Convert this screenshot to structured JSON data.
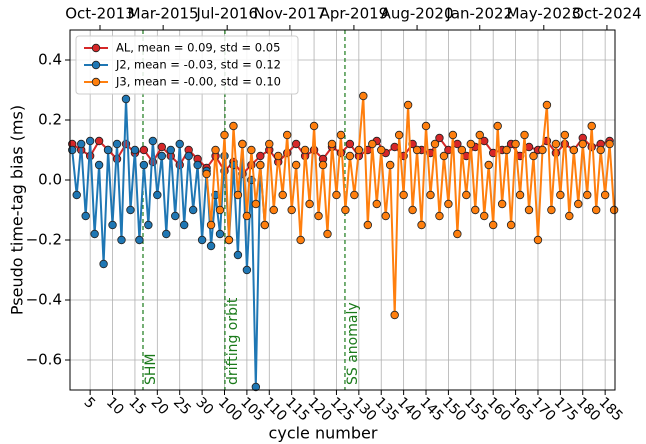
{
  "chart_data": {
    "type": "line",
    "xlabel": "cycle number",
    "ylabel": "Pseudo time-tag bias (ms)",
    "xlim": [
      0.5,
      122.2
    ],
    "ylim": [
      -0.7,
      0.5
    ],
    "xticks": [
      5,
      10,
      15,
      20,
      25,
      30,
      {
        "value": 35,
        "label": "100"
      },
      {
        "value": 40,
        "label": "105"
      },
      {
        "value": 45,
        "label": "110"
      },
      {
        "value": 50,
        "label": "115"
      },
      {
        "value": 55,
        "label": "120"
      },
      {
        "value": 60,
        "label": "125"
      },
      {
        "value": 65,
        "label": "130"
      },
      {
        "value": 70,
        "label": "135"
      },
      {
        "value": 75,
        "label": "140"
      },
      {
        "value": 80,
        "label": "145"
      },
      {
        "value": 85,
        "label": "150"
      },
      {
        "value": 90,
        "label": "155"
      },
      {
        "value": 95,
        "label": "160"
      },
      {
        "value": 100,
        "label": "165"
      },
      {
        "value": 105,
        "label": "170"
      },
      {
        "value": 110,
        "label": "175"
      },
      {
        "value": 115,
        "label": "180"
      },
      {
        "value": 120,
        "label": "185"
      }
    ],
    "x2ticks": [
      {
        "value": 7.2,
        "label": "Oct-2013"
      },
      {
        "value": 21.3,
        "label": "Mar-2015"
      },
      {
        "value": 35.6,
        "label": "Jul-2016"
      },
      {
        "value": 49.6,
        "label": "Nov-2017"
      },
      {
        "value": 63.9,
        "label": "Apr-2019"
      },
      {
        "value": 78,
        "label": "Aug-2020"
      },
      {
        "value": 92,
        "label": "Jan-2022"
      },
      {
        "value": 106.3,
        "label": "May-2023"
      },
      {
        "value": 120.4,
        "label": "Oct-2024"
      }
    ],
    "yticks": [
      0.4,
      0.2,
      {
        "value": 0,
        "label": "0.0"
      },
      {
        "value": -0.2,
        "label": "−0.2"
      },
      {
        "value": -0.4,
        "label": "−0.4"
      },
      {
        "value": -0.6,
        "label": "−0.6"
      }
    ],
    "grid": true,
    "legend": "upper left",
    "annotations": [
      {
        "text": "SHM",
        "x": 16.8
      },
      {
        "text": "drifting orbit",
        "x": 35.1
      },
      {
        "text": "SS anomaly",
        "x": 61.9
      }
    ],
    "annotation_color": "#1a7a1a",
    "series": [
      {
        "name": "AL, mean = 0.09, std = 0.05",
        "color": "#d62728",
        "x": [
          1,
          3,
          5,
          7,
          9,
          11,
          13,
          15,
          17,
          19,
          21,
          23,
          25,
          27,
          29,
          31,
          33,
          35,
          37,
          39,
          41,
          43,
          45,
          47,
          49,
          51,
          53,
          55,
          57,
          59,
          61,
          63,
          65,
          67,
          69,
          71,
          73,
          75,
          77,
          79,
          81,
          83,
          85,
          87,
          89,
          91,
          93,
          95,
          97,
          99,
          101,
          103,
          105,
          107,
          109,
          111,
          113,
          115,
          117,
          119,
          121
        ],
        "values": [
          0.12,
          0.1,
          0.08,
          0.13,
          0.1,
          0.07,
          0.12,
          0.09,
          0.1,
          0.06,
          0.11,
          0.08,
          0.05,
          0.1,
          0.07,
          0.04,
          0.08,
          0.03,
          0.06,
          0.02,
          0.05,
          0.08,
          0.1,
          0.06,
          0.09,
          0.12,
          0.08,
          0.1,
          0.07,
          0.11,
          0.09,
          0.12,
          0.08,
          0.1,
          0.13,
          0.09,
          0.11,
          0.08,
          0.12,
          0.1,
          0.09,
          0.14,
          0.1,
          0.12,
          0.08,
          0.11,
          0.13,
          0.09,
          0.1,
          0.12,
          0.08,
          0.11,
          0.1,
          0.13,
          0.09,
          0.12,
          0.1,
          0.14,
          0.11,
          0.12,
          0.13
        ]
      },
      {
        "name": "J2, mean = -0.03, std = 0.12",
        "color": "#1f77b4",
        "x": [
          1,
          2,
          3,
          4,
          5,
          6,
          7,
          8,
          9,
          10,
          11,
          12,
          13,
          14,
          15,
          16,
          17,
          18,
          19,
          20,
          21,
          22,
          23,
          24,
          25,
          26,
          27,
          28,
          29,
          30,
          31,
          32,
          33,
          34,
          35,
          36,
          37,
          38,
          39,
          40,
          41,
          42,
          43,
          44
        ],
        "values": [
          0.1,
          -0.05,
          0.12,
          -0.12,
          0.13,
          -0.18,
          0.05,
          -0.28,
          0.1,
          -0.15,
          0.12,
          -0.2,
          0.27,
          -0.1,
          0.1,
          -0.2,
          0.05,
          -0.15,
          0.13,
          -0.05,
          0.08,
          -0.18,
          0.1,
          -0.12,
          0.12,
          -0.15,
          0.08,
          -0.1,
          0.05,
          -0.2,
          0.03,
          -0.22,
          -0.05,
          -0.18,
          0.08,
          -0.2,
          0.05,
          -0.25,
          0.12,
          -0.3,
          0.0,
          -0.69,
          0.05,
          -0.15
        ]
      },
      {
        "name": "J3, mean = -0.00, std = 0.10",
        "color": "#ff7f0e",
        "x": [
          31,
          32,
          33,
          34,
          35,
          36,
          37,
          38,
          39,
          40,
          41,
          42,
          43,
          44,
          45,
          46,
          47,
          48,
          49,
          50,
          51,
          52,
          53,
          54,
          55,
          56,
          57,
          58,
          59,
          60,
          61,
          62,
          63,
          64,
          65,
          66,
          67,
          68,
          69,
          70,
          71,
          72,
          73,
          74,
          75,
          76,
          77,
          78,
          79,
          80,
          81,
          82,
          83,
          84,
          85,
          86,
          87,
          88,
          89,
          90,
          91,
          92,
          93,
          94,
          95,
          96,
          97,
          98,
          99,
          100,
          101,
          102,
          103,
          104,
          105,
          106,
          107,
          108,
          109,
          110,
          111,
          112,
          113,
          114,
          115,
          116,
          117,
          118,
          119,
          120,
          121,
          122
        ],
        "values": [
          0.02,
          -0.15,
          0.1,
          -0.1,
          0.15,
          -0.2,
          0.18,
          -0.05,
          0.12,
          -0.12,
          0.1,
          -0.08,
          0.05,
          -0.15,
          0.12,
          -0.1,
          0.08,
          -0.05,
          0.15,
          -0.1,
          0.05,
          -0.2,
          0.1,
          -0.08,
          0.18,
          -0.12,
          0.05,
          -0.18,
          0.12,
          -0.05,
          0.15,
          -0.1,
          0.08,
          -0.05,
          0.1,
          0.28,
          -0.15,
          0.12,
          -0.08,
          0.1,
          -0.12,
          0.05,
          -0.45,
          0.15,
          -0.05,
          0.25,
          -0.1,
          0.1,
          -0.15,
          0.18,
          -0.05,
          0.12,
          -0.12,
          0.08,
          -0.08,
          0.15,
          -0.18,
          0.1,
          -0.05,
          0.12,
          -0.1,
          0.15,
          -0.12,
          0.05,
          -0.15,
          0.18,
          -0.08,
          0.1,
          -0.15,
          0.12,
          -0.05,
          0.15,
          -0.1,
          0.08,
          -0.2,
          0.1,
          0.25,
          -0.1,
          0.12,
          -0.05,
          0.15,
          -0.12,
          0.1,
          -0.08,
          0.12,
          -0.05,
          0.18,
          -0.1,
          0.1,
          -0.05,
          0.12,
          -0.1
        ]
      }
    ]
  }
}
